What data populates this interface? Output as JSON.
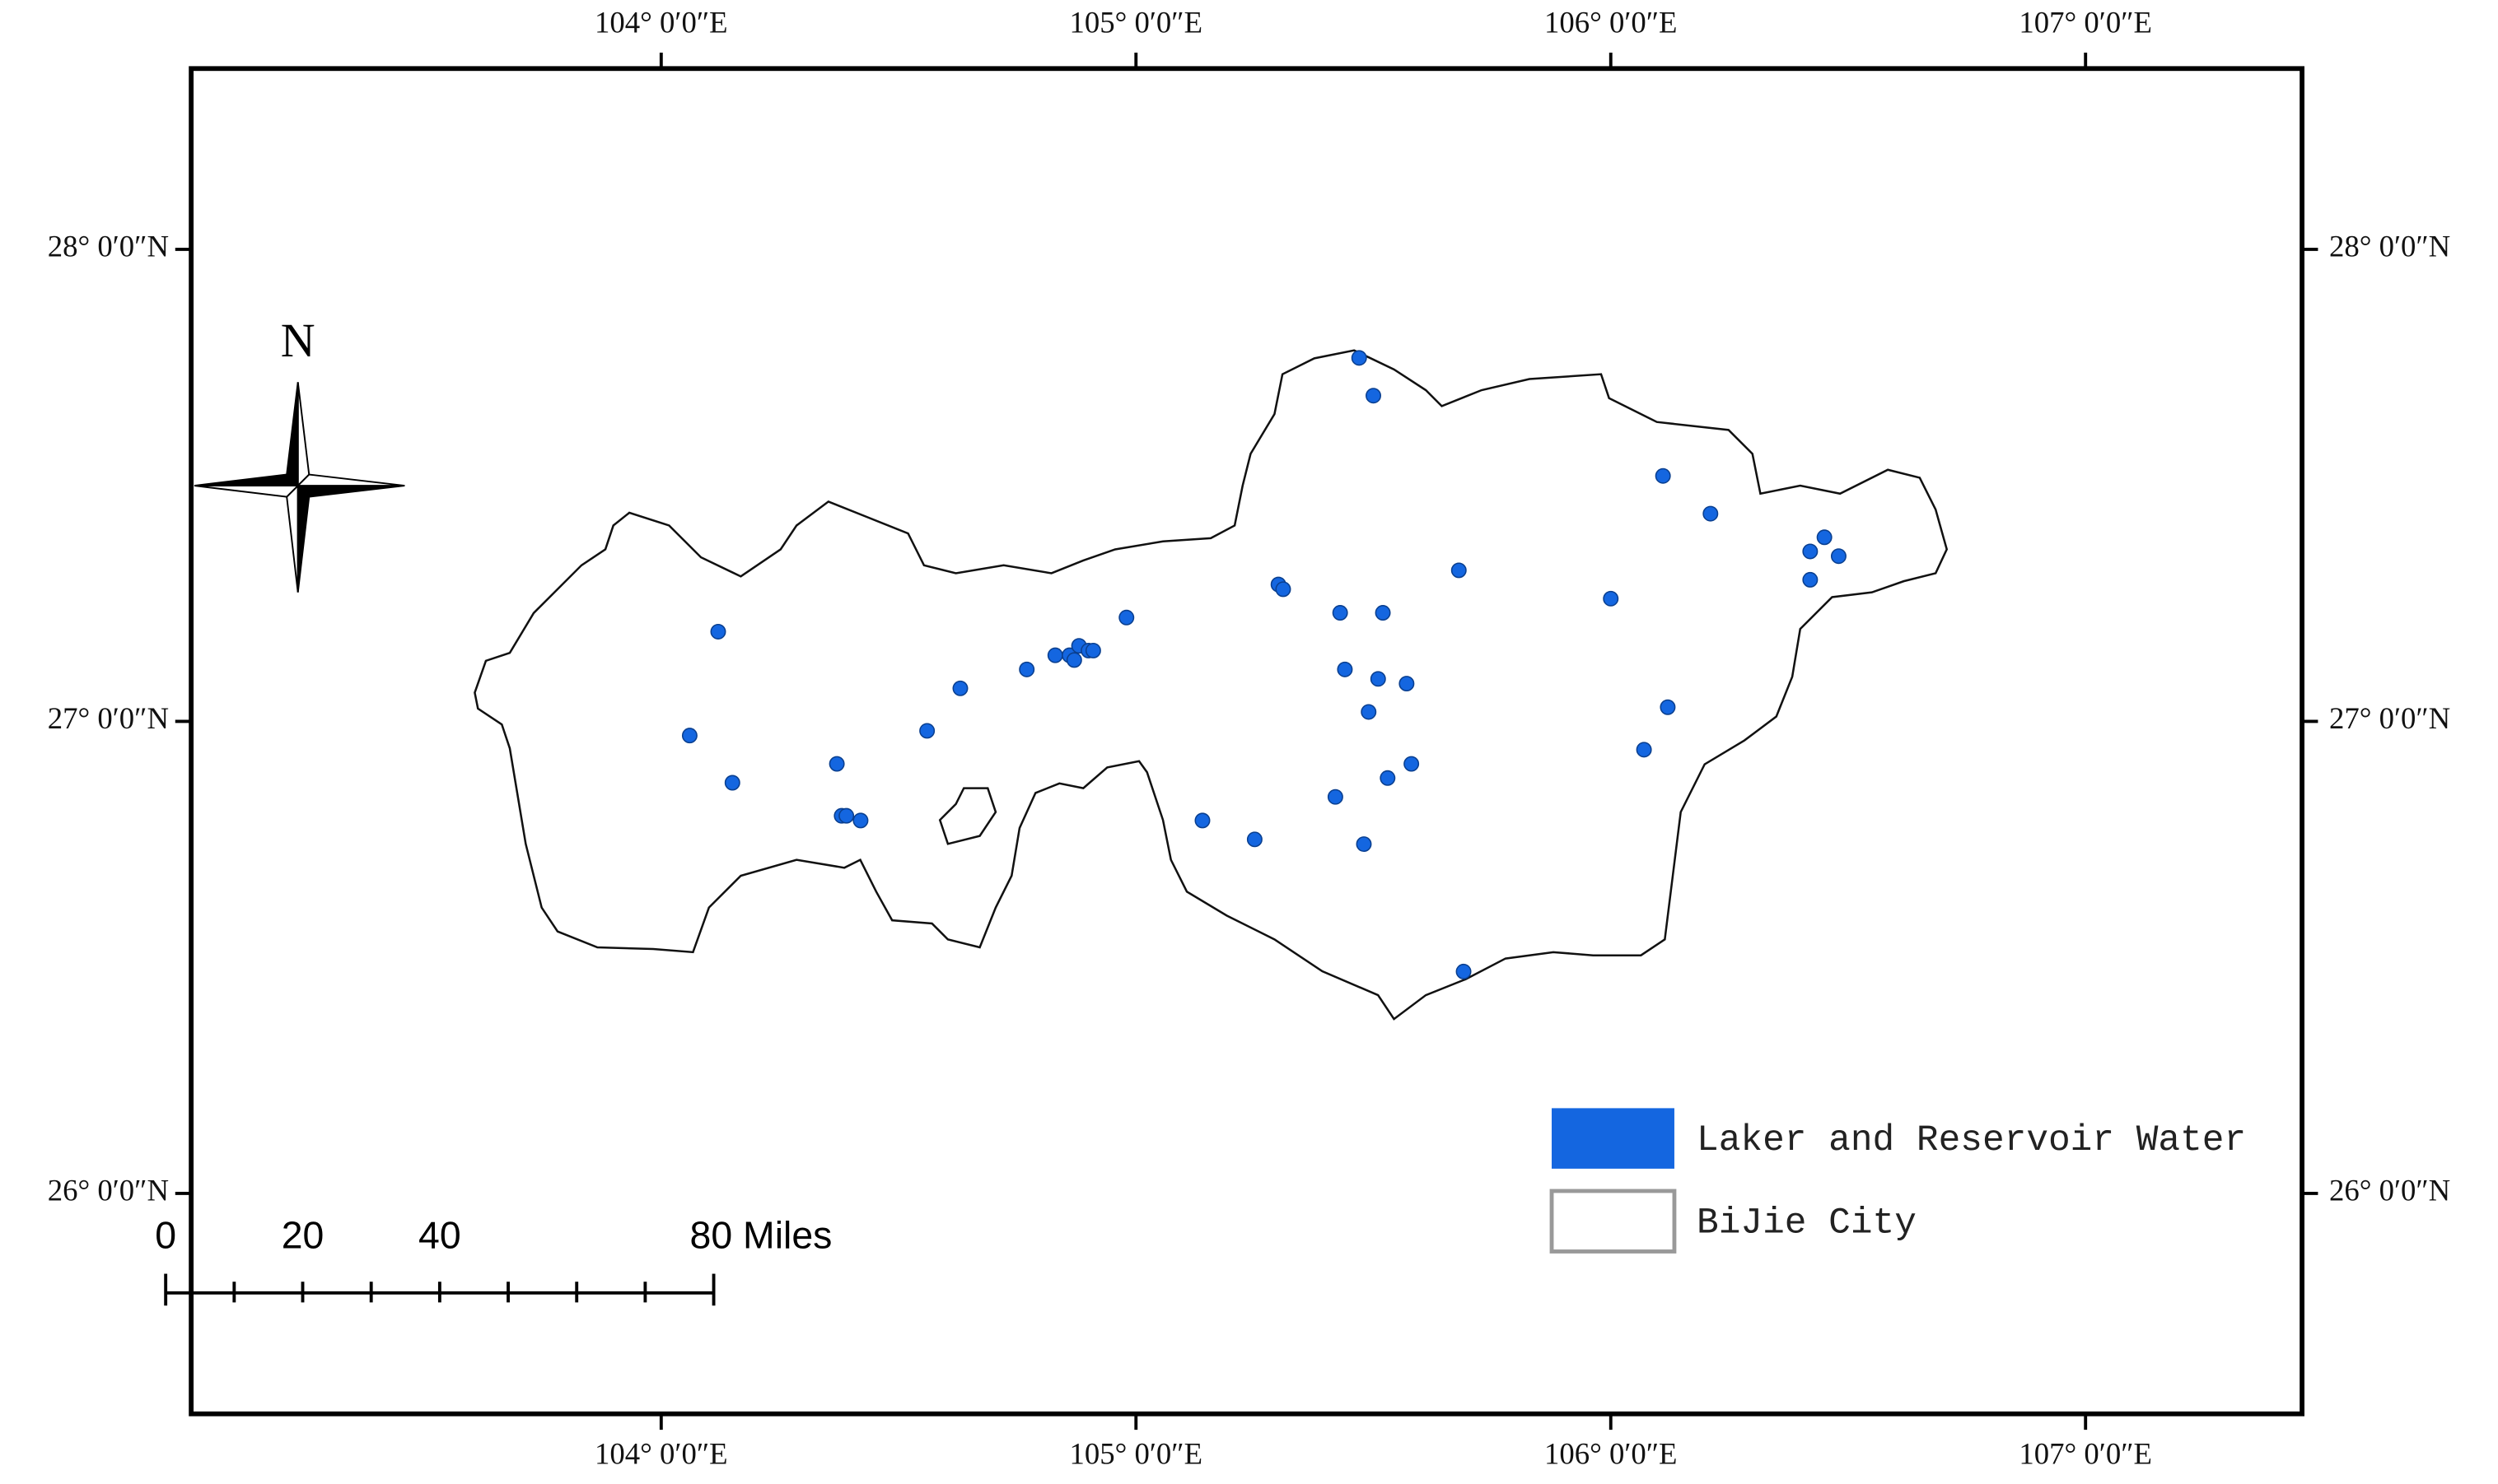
{
  "map": {
    "xlim": [
      103.01,
      107.456
    ],
    "ylim": [
      25.533,
      28.383
    ],
    "xticks": [
      {
        "value": 104,
        "label": "104° 0′0″E"
      },
      {
        "value": 105,
        "label": "105° 0′0″E"
      },
      {
        "value": 106,
        "label": "106° 0′0″E"
      },
      {
        "value": 107,
        "label": "107° 0′0″E"
      }
    ],
    "yticks": [
      {
        "value": 26,
        "label": "26° 0′0″N"
      },
      {
        "value": 27,
        "label": "27° 0′0″N"
      },
      {
        "value": 28,
        "label": "28° 0′0″N"
      }
    ],
    "north_label": "N",
    "scale_bar": {
      "labels": [
        "0",
        "20",
        "40",
        "80 Miles"
      ]
    },
    "points": {
      "name": "Laker and Reservoir Water",
      "color": "#1466e0",
      "lon": [
        105.47,
        105.5,
        106.11,
        106.21,
        106.45,
        106.42,
        106.48,
        106.42,
        105.68,
        105.3,
        105.31,
        106.0,
        105.43,
        105.52,
        104.98,
        104.12,
        104.77,
        104.83,
        104.86,
        104.88,
        104.9,
        104.91,
        104.87,
        105.44,
        105.51,
        105.57,
        104.63,
        106.12,
        105.49,
        104.06,
        104.56,
        106.07,
        104.37,
        105.58,
        105.53,
        104.15,
        105.42,
        104.38,
        104.39,
        104.42,
        105.14,
        105.25,
        105.48,
        105.69
      ],
      "lat": [
        27.77,
        27.69,
        27.52,
        27.44,
        27.39,
        27.36,
        27.35,
        27.3,
        27.32,
        27.29,
        27.28,
        27.26,
        27.23,
        27.23,
        27.22,
        27.19,
        27.11,
        27.14,
        27.14,
        27.16,
        27.15,
        27.15,
        27.13,
        27.11,
        27.09,
        27.08,
        27.07,
        27.03,
        27.02,
        26.97,
        26.98,
        26.94,
        26.91,
        26.91,
        26.88,
        26.87,
        26.84,
        26.8,
        26.8,
        26.79,
        26.79,
        26.75,
        26.74,
        26.47
      ]
    },
    "boundary": {
      "name": "BiJie City"
    }
  }
}
